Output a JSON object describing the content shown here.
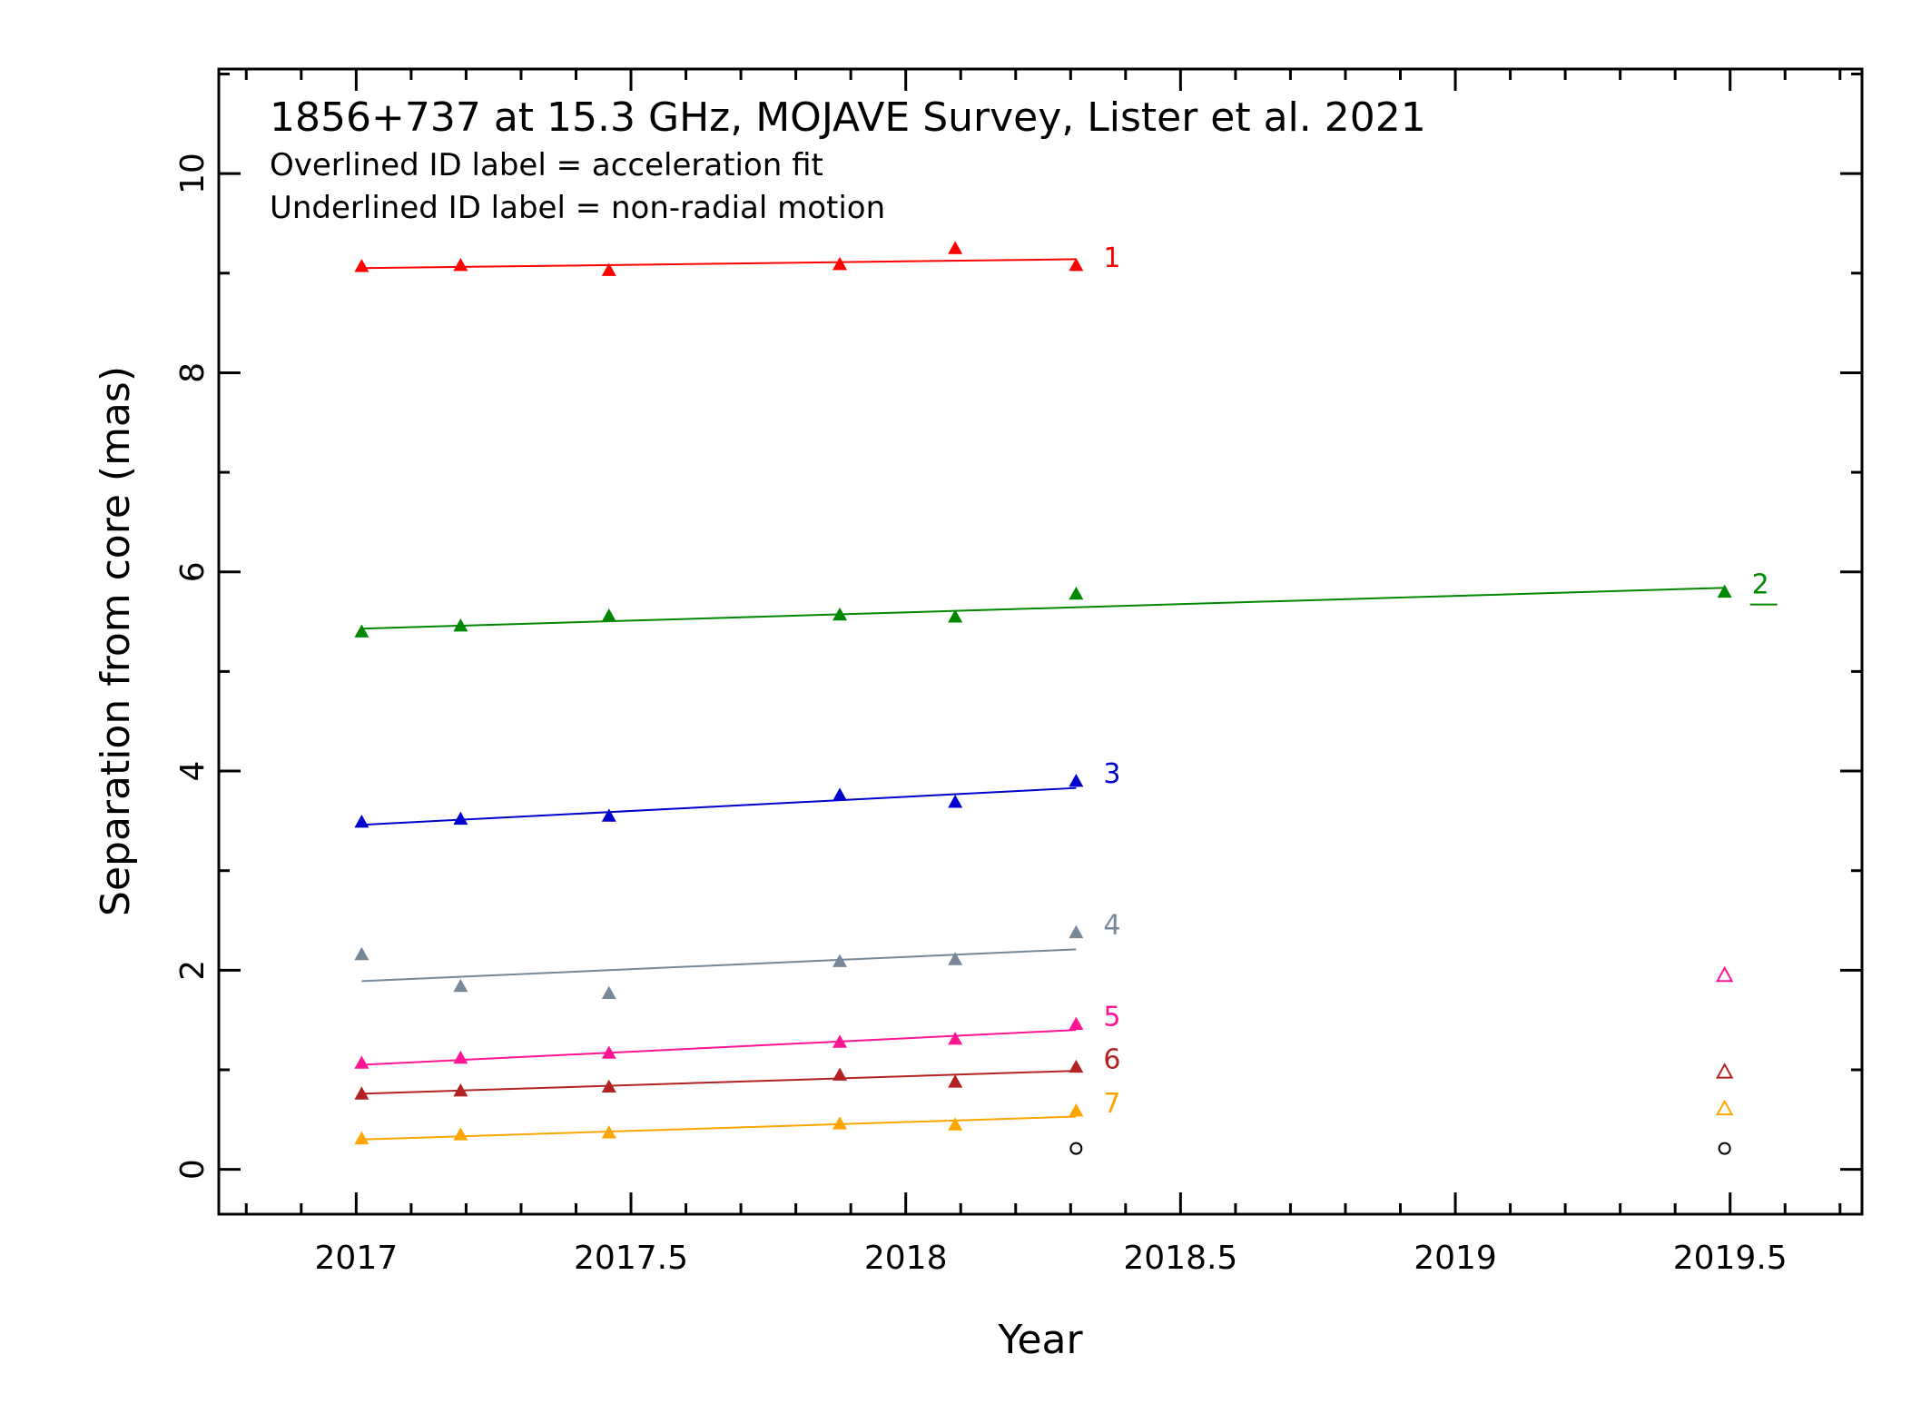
{
  "chart_data": {
    "type": "scatter",
    "title": "1856+737 at 15.3 GHz, MOJAVE Survey, Lister et al. 2021",
    "notes": [
      "Overlined ID label = acceleration fit",
      "Underlined ID label = non-radial motion"
    ],
    "xlabel": "Year",
    "ylabel": "Separation from core (mas)",
    "xlim": [
      2016.75,
      2019.74
    ],
    "ylim": [
      -0.45,
      11.05
    ],
    "xticks": [
      2017,
      2017.5,
      2018,
      2018.5,
      2019,
      2019.5
    ],
    "xtick_labels": [
      "2017",
      "2017.5",
      "2018",
      "2018.5",
      "2019",
      "2019.5"
    ],
    "yticks": [
      0,
      2,
      4,
      6,
      8,
      10
    ],
    "ytick_labels": [
      "0",
      "2",
      "4",
      "6",
      "8",
      "10"
    ],
    "grid": false,
    "series": [
      {
        "name": "1",
        "color": "#ff0000",
        "underlined": false,
        "x": [
          2017.01,
          2017.19,
          2017.46,
          2017.88,
          2018.09,
          2018.31
        ],
        "y": [
          9.07,
          9.08,
          9.03,
          9.09,
          9.25,
          9.08
        ],
        "fit": {
          "x": [
            2017.01,
            2018.31
          ],
          "y": [
            9.05,
            9.14
          ]
        }
      },
      {
        "name": "2",
        "color": "#008800",
        "underlined": true,
        "x": [
          2017.01,
          2017.19,
          2017.46,
          2017.88,
          2018.09,
          2018.31,
          2019.49
        ],
        "y": [
          5.4,
          5.46,
          5.56,
          5.57,
          5.55,
          5.78,
          5.8
        ],
        "fit": {
          "x": [
            2017.01,
            2019.49
          ],
          "y": [
            5.43,
            5.84
          ]
        }
      },
      {
        "name": "3",
        "color": "#0000cc",
        "underlined": false,
        "x": [
          2017.01,
          2017.19,
          2017.46,
          2017.88,
          2018.09,
          2018.31
        ],
        "y": [
          3.49,
          3.52,
          3.55,
          3.76,
          3.69,
          3.9
        ],
        "fit": {
          "x": [
            2017.01,
            2018.31
          ],
          "y": [
            3.46,
            3.83
          ]
        }
      },
      {
        "name": "4",
        "color": "#778899",
        "underlined": false,
        "x": [
          2017.01,
          2017.19,
          2017.46,
          2017.88,
          2018.09,
          2018.31
        ],
        "y": [
          2.16,
          1.84,
          1.77,
          2.09,
          2.11,
          2.38
        ],
        "fit": {
          "x": [
            2017.01,
            2018.31
          ],
          "y": [
            1.89,
            2.21
          ]
        }
      },
      {
        "name": "5",
        "color": "#ff1493",
        "underlined": false,
        "x": [
          2017.01,
          2017.19,
          2017.46,
          2017.88,
          2018.09,
          2018.31
        ],
        "y": [
          1.07,
          1.12,
          1.17,
          1.28,
          1.31,
          1.46
        ],
        "fit": {
          "x": [
            2017.01,
            2018.31
          ],
          "y": [
            1.05,
            1.4
          ]
        },
        "open_points": {
          "x": [
            2019.49
          ],
          "y": [
            1.95
          ]
        }
      },
      {
        "name": "6",
        "color": "#b22222",
        "underlined": false,
        "x": [
          2017.01,
          2017.19,
          2017.46,
          2017.88,
          2018.09,
          2018.31
        ],
        "y": [
          0.76,
          0.79,
          0.83,
          0.95,
          0.88,
          1.03
        ],
        "fit": {
          "x": [
            2017.01,
            2018.31
          ],
          "y": [
            0.76,
            0.99
          ]
        },
        "open_points": {
          "x": [
            2019.49
          ],
          "y": [
            0.98
          ]
        }
      },
      {
        "name": "7",
        "color": "#ffa500",
        "underlined": false,
        "x": [
          2017.01,
          2017.19,
          2017.46,
          2017.88,
          2018.09,
          2018.31
        ],
        "y": [
          0.31,
          0.35,
          0.37,
          0.46,
          0.45,
          0.59
        ],
        "fit": {
          "x": [
            2017.01,
            2018.31
          ],
          "y": [
            0.3,
            0.53
          ]
        },
        "open_points": {
          "x": [
            2019.49
          ],
          "y": [
            0.61
          ]
        }
      }
    ],
    "core_points": {
      "color": "#000000",
      "marker": "open-circle",
      "x": [
        2018.31,
        2019.49
      ],
      "y": [
        0.21,
        0.21
      ]
    }
  }
}
